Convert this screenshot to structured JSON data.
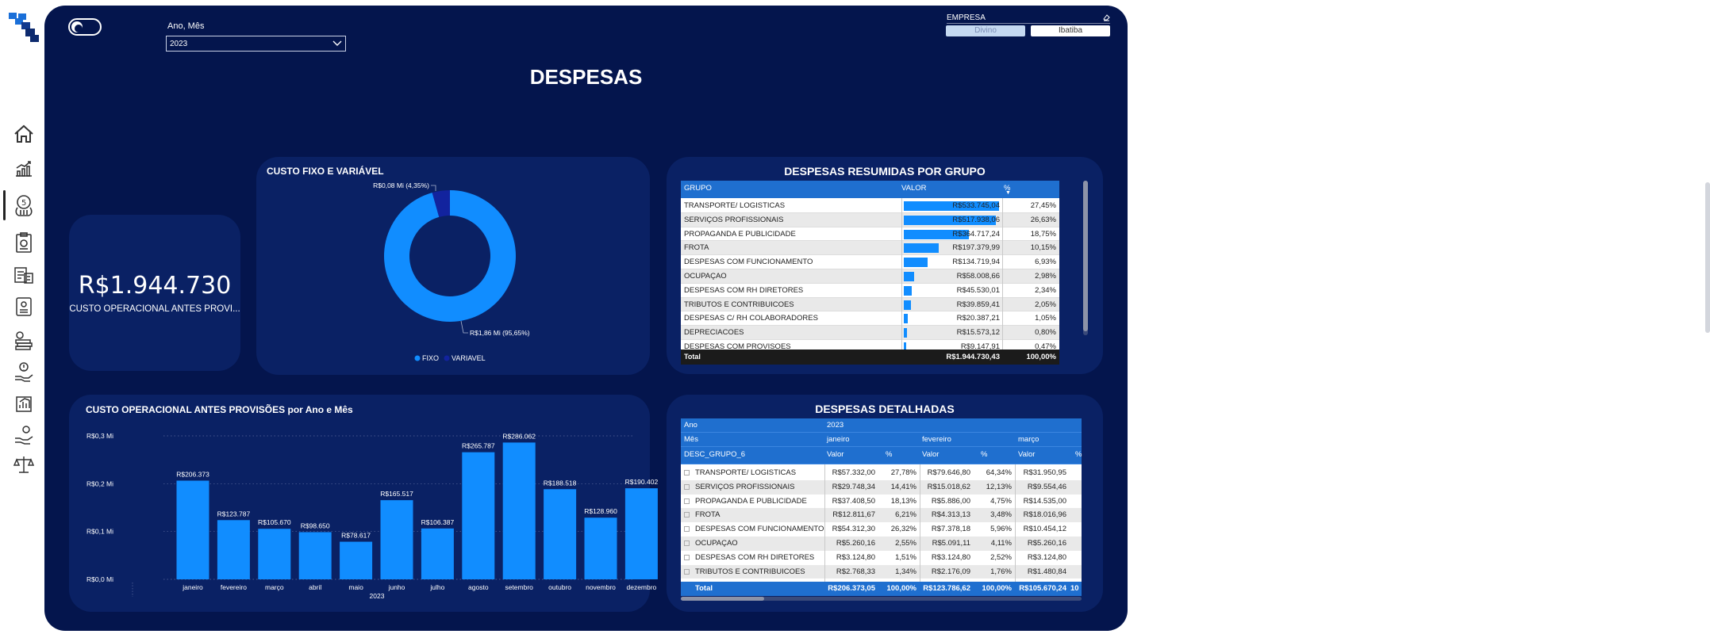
{
  "sidebar": {
    "icons": [
      "home-icon",
      "growth-chart-icon",
      "money-bag-icon",
      "clipboard-icon",
      "invoice-icon",
      "report-icon",
      "cash-stack-icon",
      "alert-hand-icon",
      "chart-report-icon",
      "hand-coin-icon",
      "scale-icon"
    ],
    "active_index": 2
  },
  "header": {
    "filter_label": "Ano, Mês",
    "filter_value": "2023",
    "empresa_label": "EMPRESA",
    "empresa_options": [
      "Divino",
      "Ibatiba"
    ],
    "empresa_selected": "Divino",
    "title": "DESPESAS"
  },
  "kpi": {
    "value": "R$1.944.730",
    "label": "CUSTO OPERACIONAL ANTES PROVI..."
  },
  "donut": {
    "title": "CUSTO FIXO E VARIÁVEL",
    "slices": [
      {
        "name": "FIXO",
        "value": 95.65,
        "label": "R$1,86 Mi (95,65%)",
        "color": "#118dff"
      },
      {
        "name": "VARIAVEL",
        "value": 4.35,
        "label": "R$0,08 Mi (4,35%)",
        "color": "#12239e"
      }
    ],
    "legend": [
      "FIXO",
      "VARIAVEL"
    ]
  },
  "summary_table": {
    "title": "DESPESAS RESUMIDAS POR GRUPO",
    "headers": [
      "GRUPO",
      "VALOR",
      "%"
    ],
    "rows": [
      {
        "grupo": "TRANSPORTE/ LOGISTICAS",
        "valor": "R$533.745,04",
        "pct": "27,45%",
        "v": 533745.04
      },
      {
        "grupo": "SERVIÇOS PROFISSIONAIS",
        "valor": "R$517.938,06",
        "pct": "26,63%",
        "v": 517938.06
      },
      {
        "grupo": "PROPAGANDA E PUBLICIDADE",
        "valor": "R$364.717,24",
        "pct": "18,75%",
        "v": 364717.24
      },
      {
        "grupo": "FROTA",
        "valor": "R$197.379,99",
        "pct": "10,15%",
        "v": 197379.99
      },
      {
        "grupo": "DESPESAS COM FUNCIONAMENTO",
        "valor": "R$134.719,94",
        "pct": "6,93%",
        "v": 134719.94
      },
      {
        "grupo": "OCUPAÇAO",
        "valor": "R$58.008,66",
        "pct": "2,98%",
        "v": 58008.66
      },
      {
        "grupo": "DESPESAS COM RH DIRETORES",
        "valor": "R$45.530,01",
        "pct": "2,34%",
        "v": 45530.01
      },
      {
        "grupo": "TRIBUTOS E CONTRIBUICOES",
        "valor": "R$39.859,41",
        "pct": "2,05%",
        "v": 39859.41
      },
      {
        "grupo": "DESPESAS C/ RH COLABORADORES",
        "valor": "R$20.387,21",
        "pct": "1,05%",
        "v": 20387.21
      },
      {
        "grupo": "DEPRECIACOES",
        "valor": "R$15.573,12",
        "pct": "0,80%",
        "v": 15573.12
      },
      {
        "grupo": "DESPESAS COM PROVISOES",
        "valor": "R$9.147,91",
        "pct": "0,47%",
        "v": 9147.91
      }
    ],
    "total": {
      "label": "Total",
      "valor": "R$1.944.730,43",
      "pct": "100,00%"
    }
  },
  "chart_data": {
    "type": "bar",
    "title": "CUSTO OPERACIONAL ANTES PROVISÕES por Ano e Mês",
    "categories": [
      "janeiro",
      "fevereiro",
      "março",
      "abril",
      "maio",
      "junho",
      "julho",
      "agosto",
      "setembro",
      "outubro",
      "novembro",
      "dezembro"
    ],
    "values": [
      206373,
      123787,
      105670,
      98650,
      78617,
      165517,
      106387,
      265787,
      286062,
      188518,
      128960,
      190402
    ],
    "data_labels": [
      "R$206.373",
      "R$123.787",
      "R$105.670",
      "R$98.650",
      "R$78.617",
      "R$165.517",
      "R$106.387",
      "R$265.787",
      "R$286.062",
      "R$188.518",
      "R$128.960",
      "R$190.402"
    ],
    "group_label": "2023",
    "yticks": [
      {
        "v": 0,
        "label": "R$0,0 Mi"
      },
      {
        "v": 100000,
        "label": "R$0,1 Mi"
      },
      {
        "v": 200000,
        "label": "R$0,2 Mi"
      },
      {
        "v": 300000,
        "label": "R$0,3 Mi"
      }
    ],
    "ylim": [
      0,
      300000
    ],
    "color": "#118dff",
    "grid": true
  },
  "detail_table": {
    "title": "DESPESAS DETALHADAS",
    "ano_label": "Ano",
    "ano_value": "2023",
    "mes_label": "Mês",
    "months": [
      "janeiro",
      "fevereiro",
      "março"
    ],
    "group_label": "DESC_GRUPO_6",
    "col_valor": "Valor",
    "col_pct": "%",
    "rows": [
      {
        "grupo": "TRANSPORTE/ LOGISTICAS",
        "c": [
          "R$57.332,00",
          "27,78%",
          "R$79.646,80",
          "64,34%",
          "R$31.950,95"
        ]
      },
      {
        "grupo": "SERVIÇOS PROFISSIONAIS",
        "c": [
          "R$29.748,34",
          "14,41%",
          "R$15.018,62",
          "12,13%",
          "R$9.554,46"
        ]
      },
      {
        "grupo": "PROPAGANDA E PUBLICIDADE",
        "c": [
          "R$37.408,50",
          "18,13%",
          "R$5.886,00",
          "4,75%",
          "R$14.535,00"
        ]
      },
      {
        "grupo": "FROTA",
        "c": [
          "R$12.811,67",
          "6,21%",
          "R$4.313,13",
          "3,48%",
          "R$18.016,96"
        ]
      },
      {
        "grupo": "DESPESAS COM FUNCIONAMENTO",
        "c": [
          "R$54.312,30",
          "26,32%",
          "R$7.378,18",
          "5,96%",
          "R$10.454,12"
        ]
      },
      {
        "grupo": "OCUPAÇAO",
        "c": [
          "R$5.260,16",
          "2,55%",
          "R$5.091,11",
          "4,11%",
          "R$5.260,16"
        ]
      },
      {
        "grupo": "DESPESAS COM RH DIRETORES",
        "c": [
          "R$3.124,80",
          "1,51%",
          "R$3.124,80",
          "2,52%",
          "R$3.124,80"
        ]
      },
      {
        "grupo": "TRIBUTOS E CONTRIBUICOES",
        "c": [
          "R$2.768,33",
          "1,34%",
          "R$2.176,09",
          "1,76%",
          "R$1.480,84"
        ]
      }
    ],
    "total": {
      "label": "Total",
      "c": [
        "R$206.373,05",
        "100,00%",
        "R$123.786,62",
        "100,00%",
        "R$105.670,24",
        "10"
      ]
    }
  }
}
